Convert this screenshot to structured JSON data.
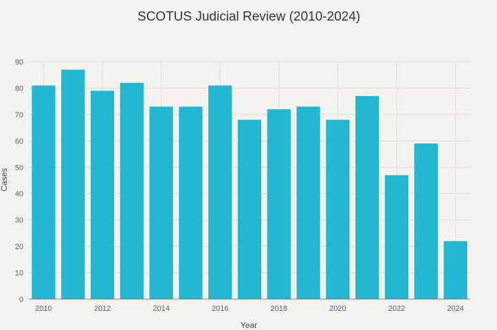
{
  "chart_data": {
    "type": "bar",
    "title": "SCOTUS Judicial Review (2010-2024)",
    "xlabel": "Year",
    "ylabel": "Cases",
    "categories": [
      2010,
      2011,
      2012,
      2013,
      2014,
      2015,
      2016,
      2017,
      2018,
      2019,
      2020,
      2021,
      2022,
      2023,
      2024
    ],
    "values": [
      81,
      87,
      79,
      82,
      73,
      73,
      81,
      68,
      72,
      73,
      68,
      77,
      47,
      59,
      22
    ],
    "ylim": [
      0,
      90
    ],
    "yticks": [
      0,
      10,
      20,
      30,
      40,
      50,
      60,
      70,
      80,
      90
    ],
    "xticks": [
      2010,
      2012,
      2014,
      2016,
      2018,
      2020,
      2022,
      2024
    ],
    "grid": true,
    "bar_color": "#21b8cf"
  }
}
